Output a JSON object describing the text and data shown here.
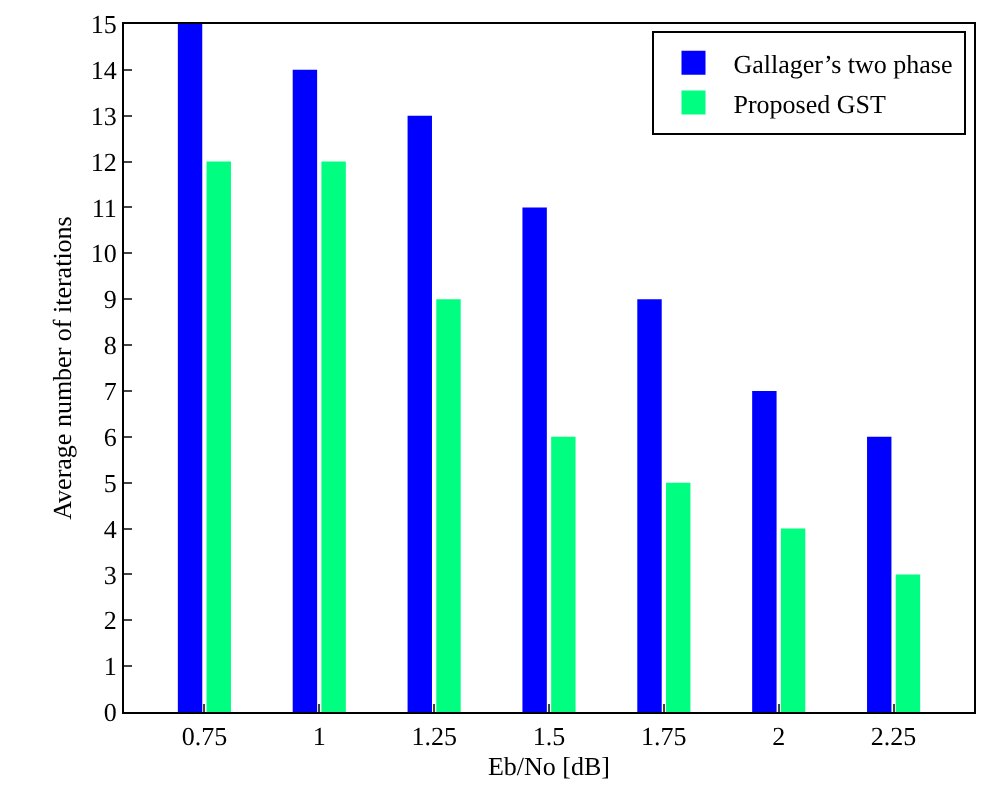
{
  "chart_data": {
    "type": "bar",
    "xlabel": "Eb/No [dB]",
    "ylabel": "Average number of iterations",
    "categories": [
      "0.75",
      "1",
      "1.25",
      "1.5",
      "1.75",
      "2",
      "2.25"
    ],
    "series": [
      {
        "name": "Gallager’s two phase",
        "color": "#0000ff",
        "values": [
          15,
          14,
          13,
          11,
          9,
          7,
          6
        ]
      },
      {
        "name": "Proposed GST",
        "color": "#00ff80",
        "values": [
          12,
          12,
          9,
          6,
          5,
          4,
          3
        ]
      }
    ],
    "ylim": [
      0,
      15
    ],
    "yticks": [
      0,
      1,
      2,
      3,
      4,
      5,
      6,
      7,
      8,
      9,
      10,
      11,
      12,
      13,
      14,
      15
    ],
    "grid": false,
    "legend": "top right"
  }
}
